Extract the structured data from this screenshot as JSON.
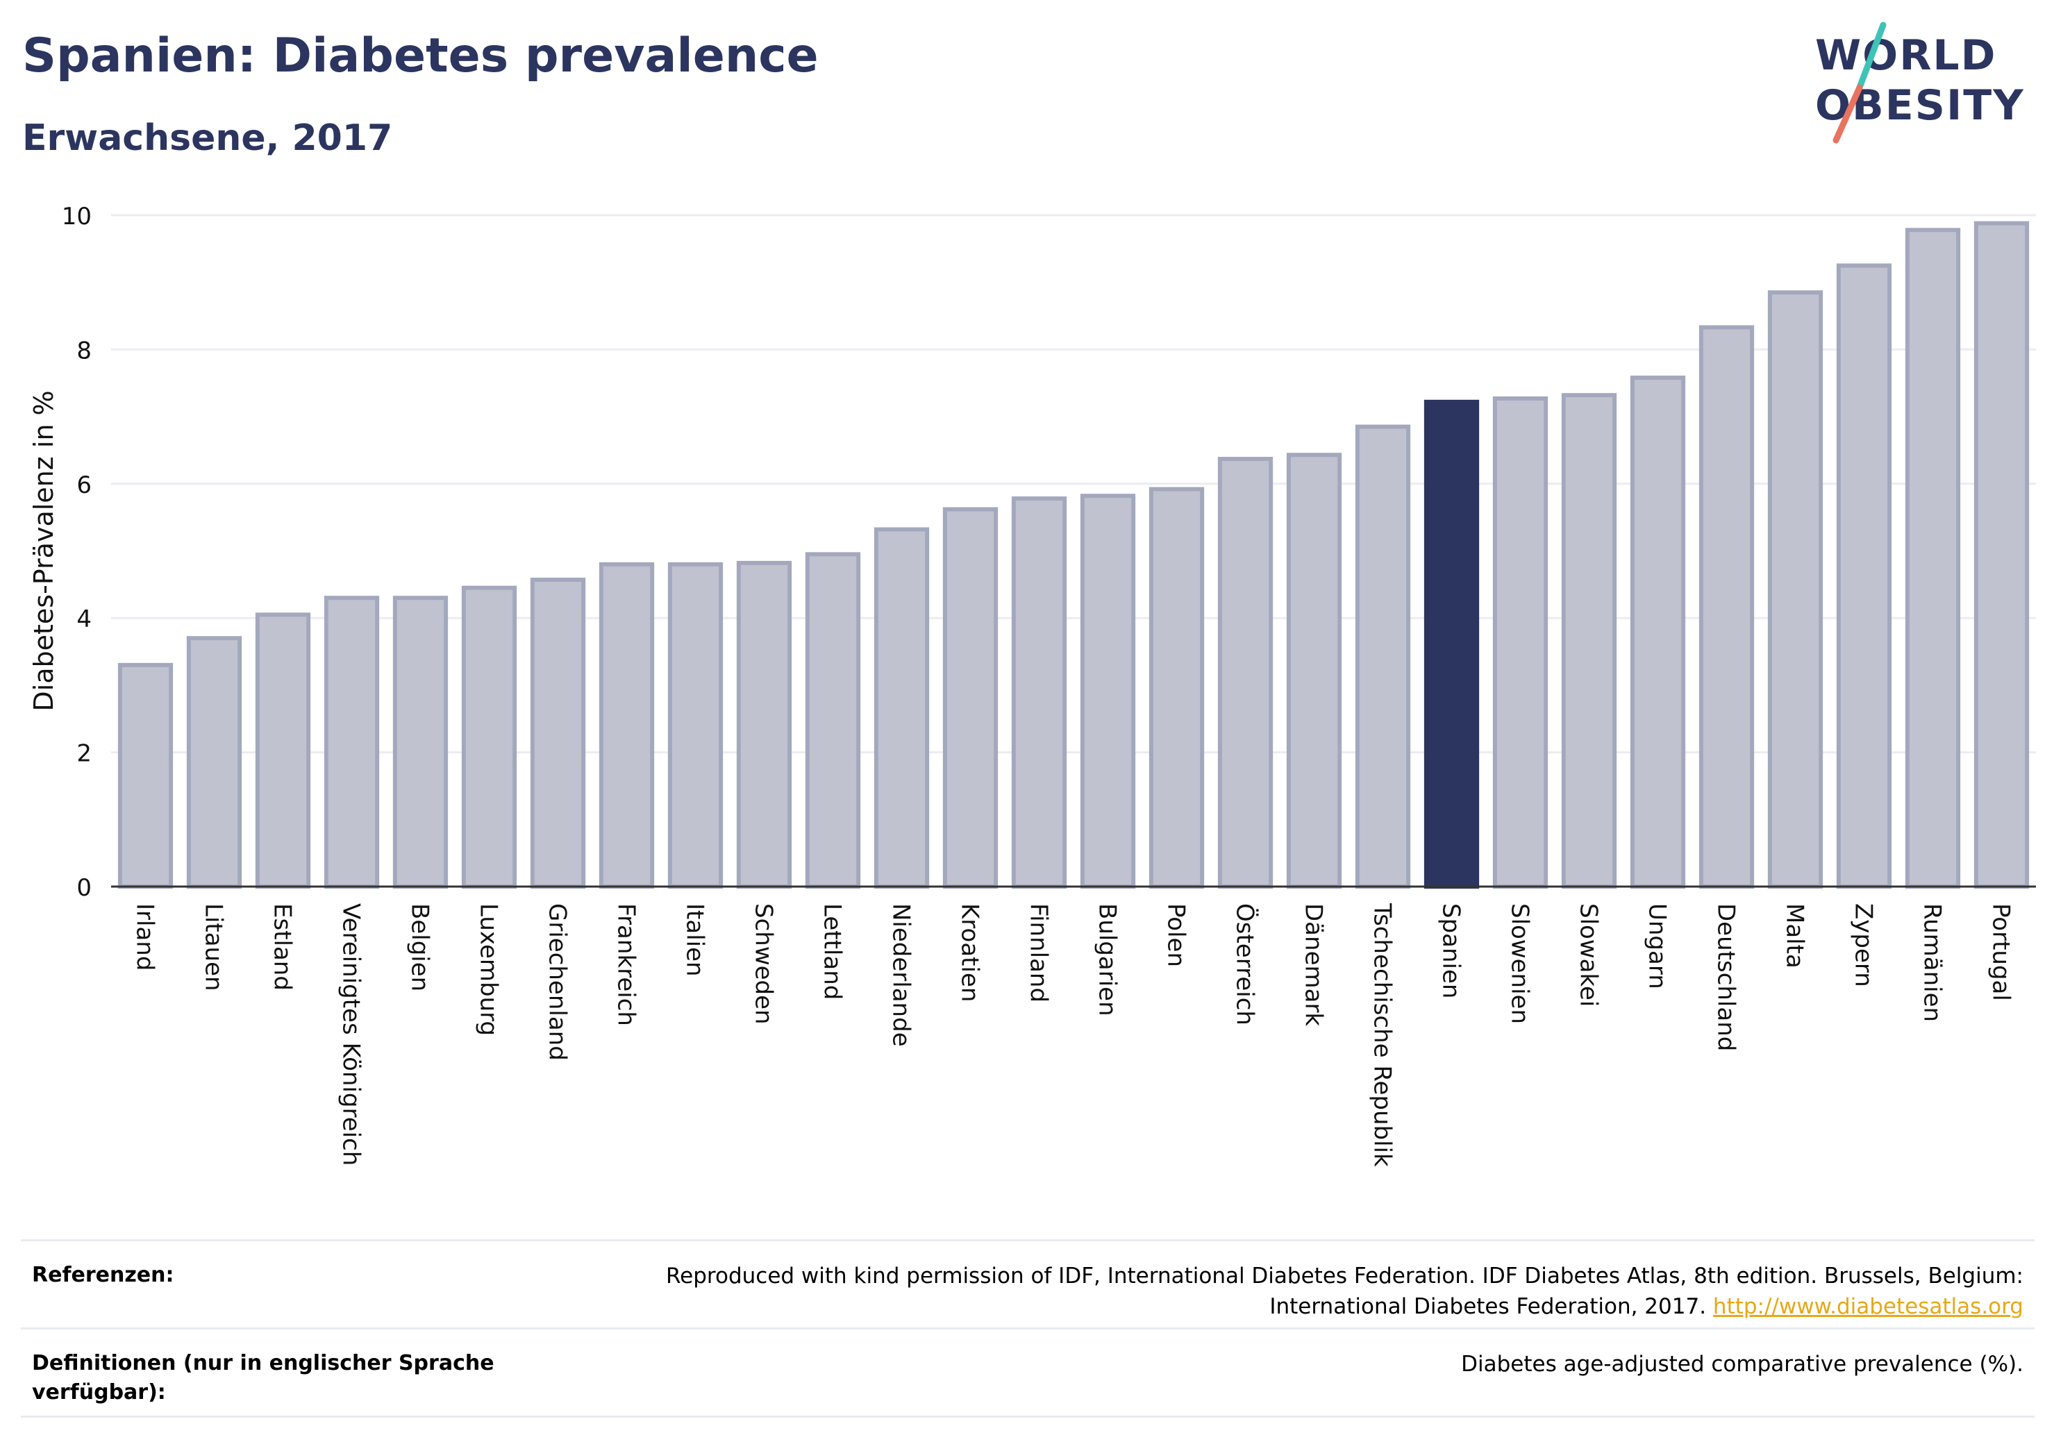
{
  "header": {
    "title": "Spanien: Diabetes prevalence",
    "subtitle": "Erwachsene, 2017"
  },
  "logo": {
    "line1": "WORLD",
    "line2": "OBESITY",
    "colors": {
      "text": "#2b355f",
      "slash_top": "#3ec3b6",
      "slash_bottom": "#e8735f"
    }
  },
  "chart_data": {
    "type": "bar",
    "ylabel": "Diabetes-Prävalenz in %",
    "xlabel": "",
    "ylim": [
      0,
      10
    ],
    "yticks": [
      0,
      2,
      4,
      6,
      8,
      10
    ],
    "grid": true,
    "highlight": "Spanien",
    "colors": {
      "bar": "#c0c3cf",
      "bar_border": "#a3a8bd",
      "highlight": "#2b355f",
      "grid": "#ececf2"
    },
    "categories": [
      "Irland",
      "Litauen",
      "Estland",
      "Vereinigtes Königreich",
      "Belgien",
      "Luxemburg",
      "Griechenland",
      "Frankreich",
      "Italien",
      "Schweden",
      "Lettland",
      "Niederlande",
      "Kroatien",
      "Finnland",
      "Bulgarien",
      "Polen",
      "Österreich",
      "Dänemark",
      "Tschechische Republik",
      "Spanien",
      "Slowenien",
      "Slowakei",
      "Ungarn",
      "Deutschland",
      "Malta",
      "Zypern",
      "Rumänien",
      "Portugal"
    ],
    "values": [
      3.3,
      3.7,
      4.05,
      4.3,
      4.3,
      4.45,
      4.57,
      4.8,
      4.8,
      4.82,
      4.95,
      5.32,
      5.62,
      5.78,
      5.82,
      5.92,
      6.37,
      6.43,
      6.85,
      7.22,
      7.27,
      7.32,
      7.58,
      8.33,
      8.85,
      9.25,
      9.78,
      9.88
    ]
  },
  "footer": {
    "references_label": "Referenzen:",
    "references_text": "Reproduced with kind permission of IDF, International Diabetes Federation. IDF Diabetes Atlas, 8th edition. Brussels, Belgium: International Diabetes Federation, 2017.",
    "references_link": "http://www.diabetesatlas.org",
    "definitions_label": "Definitionen (nur in englischer Sprache verfügbar):",
    "definitions_text": "Diabetes age-adjusted comparative prevalence (%)."
  }
}
